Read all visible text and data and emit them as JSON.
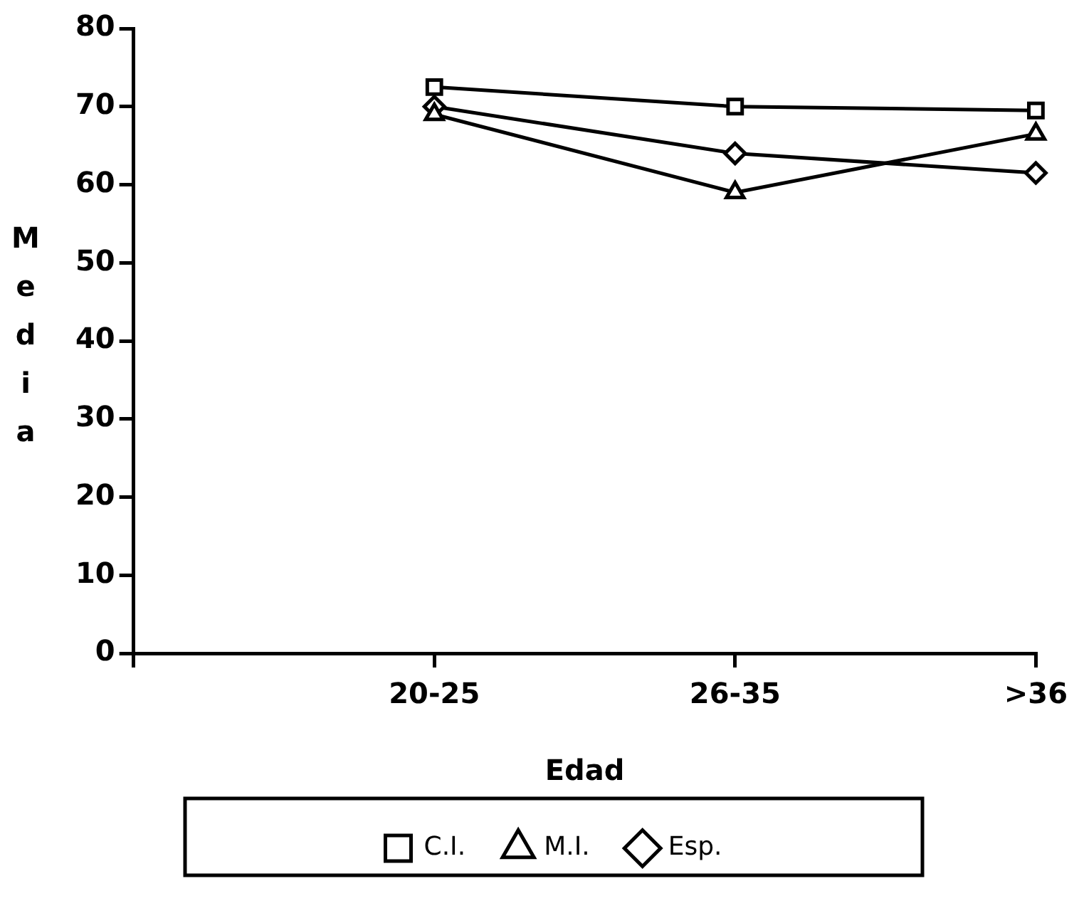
{
  "chart_data": {
    "type": "line",
    "xlabel": "Edad",
    "ylabel": "Media",
    "categories": [
      null,
      "20-25",
      "26-35",
      ">36"
    ],
    "series": [
      {
        "name": "C.I.",
        "color": "#000000",
        "marker": "square",
        "values": [
          null,
          72.5,
          70,
          69.5
        ]
      },
      {
        "name": "M.I.",
        "color": "#000000",
        "marker": "triangle",
        "values": [
          null,
          69,
          59,
          66.5
        ]
      },
      {
        "name": "Esp.",
        "color": "#000000",
        "marker": "diamond",
        "values": [
          null,
          70,
          64,
          61.5
        ]
      }
    ],
    "ylim": [
      0,
      80
    ],
    "yticks": [
      0,
      10,
      20,
      30,
      40,
      50,
      60,
      70,
      80
    ],
    "grid": false,
    "legend": "bottom",
    "line_style": "solid"
  }
}
